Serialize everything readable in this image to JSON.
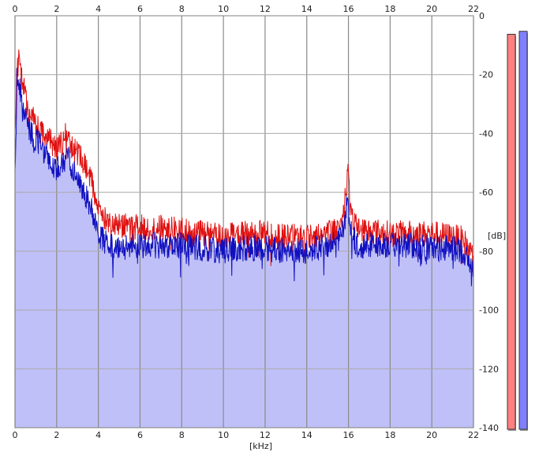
{
  "chart_data": {
    "type": "line",
    "xlabel": "[kHz]",
    "ylabel": "[dB]",
    "xlim": [
      0,
      22
    ],
    "ylim": [
      -140,
      0
    ],
    "x_ticks": [
      0,
      2,
      4,
      6,
      8,
      10,
      12,
      14,
      16,
      18,
      20,
      22
    ],
    "x_tick_labels": [
      "0",
      "2",
      "4",
      "6",
      "8",
      "10",
      "12",
      "14",
      "16",
      "18",
      "20",
      "22"
    ],
    "y_ticks": [
      0,
      -20,
      -40,
      -60,
      -80,
      -100,
      -120,
      -140
    ],
    "y_tick_labels": [
      "0",
      "-20",
      "-40",
      "-60",
      "-80",
      "-100",
      "-120",
      "-140"
    ],
    "grid": true,
    "series": [
      {
        "color": "#e01010",
        "x": [
          0,
          0.1,
          0.2,
          0.3,
          0.5,
          0.7,
          1.0,
          1.3,
          1.6,
          2.0,
          2.3,
          2.5,
          2.7,
          3.0,
          3.3,
          3.6,
          3.9,
          4.1,
          4.3,
          4.6,
          5,
          6,
          7,
          8,
          9,
          10,
          11,
          12,
          13,
          14,
          15,
          15.5,
          15.8,
          15.95,
          16.1,
          16.4,
          17,
          18,
          19,
          20,
          21,
          21.5,
          22
        ],
        "values": [
          -38,
          -18,
          -15,
          -20,
          -28,
          -33,
          -37,
          -40,
          -42,
          -45,
          -43,
          -39,
          -44,
          -47,
          -50,
          -55,
          -62,
          -67,
          -69,
          -70,
          -71,
          -72,
          -72,
          -73,
          -74,
          -75,
          -74,
          -74,
          -75,
          -75,
          -74,
          -72,
          -66,
          -52,
          -66,
          -72,
          -73,
          -74,
          -74,
          -74,
          -75,
          -76,
          -82
        ]
      },
      {
        "color": "#1010c0",
        "x": [
          0,
          0.1,
          0.2,
          0.3,
          0.5,
          0.7,
          1.0,
          1.3,
          1.6,
          2.0,
          2.3,
          2.5,
          2.7,
          3.0,
          3.3,
          3.6,
          3.9,
          4.1,
          4.3,
          4.6,
          5,
          6,
          7,
          8,
          9,
          10,
          11,
          12,
          13,
          14,
          15,
          15.5,
          15.8,
          15.95,
          16.1,
          16.4,
          17,
          18,
          19,
          20,
          21,
          21.5,
          22
        ],
        "values": [
          -55,
          -22,
          -22,
          -28,
          -35,
          -39,
          -42,
          -45,
          -48,
          -52,
          -50,
          -47,
          -52,
          -56,
          -60,
          -64,
          -70,
          -75,
          -77,
          -78,
          -78,
          -78,
          -78,
          -78,
          -79,
          -80,
          -79,
          -79,
          -80,
          -80,
          -78,
          -76,
          -73,
          -62,
          -72,
          -78,
          -78,
          -78,
          -78,
          -79,
          -79,
          -80,
          -87
        ]
      }
    ],
    "level_meters": [
      {
        "color": "#ff8080",
        "level_db": -2
      },
      {
        "color": "#8080ff",
        "level_db": -1
      }
    ]
  }
}
